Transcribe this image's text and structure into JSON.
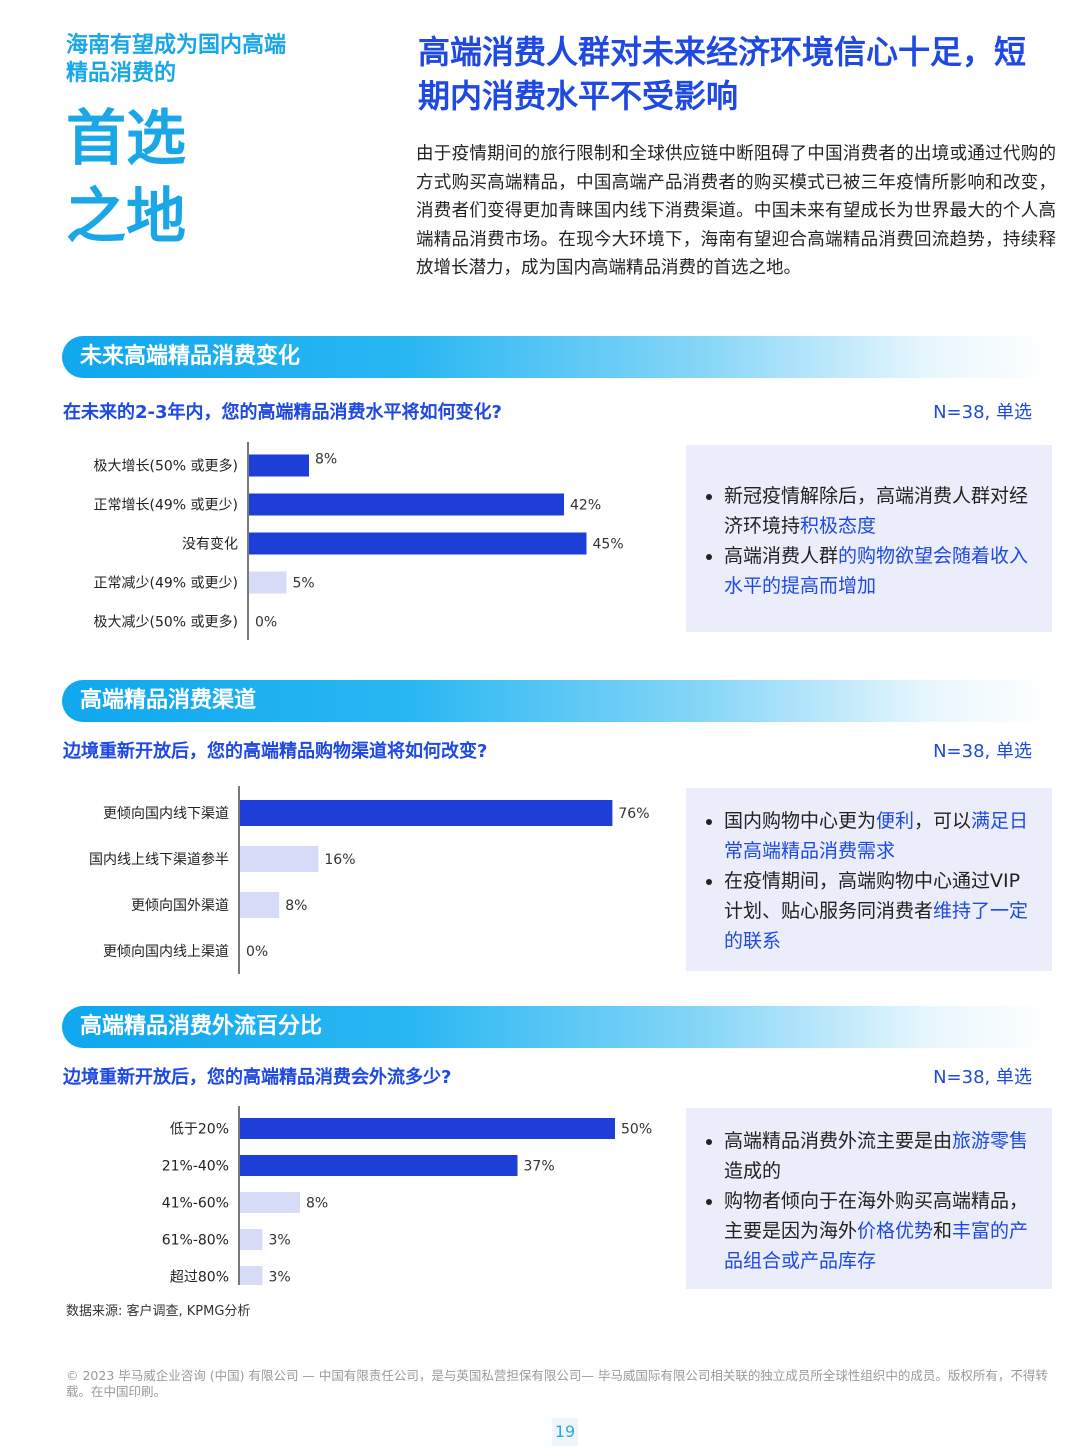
{
  "header": {
    "tagline_small": "海南有望成为国内高端精品消费的",
    "tagline_big_1": "首选",
    "tagline_big_2": "之地",
    "headline": "高端消费人群对未来经济环境信心十足，短期内消费水平不受影响",
    "intro": "由于疫情期间的旅行限制和全球供应链中断阻碍了中国消费者的出境或通过代购的方式购买高端精品，中国高端产品消费者的购买模式已被三年疫情所影响和改变，消费者们变得更加青睐国内线下消费渠道。中国未来有望成长为世界最大的个人高端精品消费市场。在现今大环境下，海南有望迎合高端精品消费回流趋势，持续释放增长潜力，成为国内高端精品消费的首选之地。"
  },
  "sections": [
    {
      "title": "未来高端精品消费变化",
      "question": "在未来的2-3年内，您的高端精品消费水平将如何变化?",
      "n_label": "N=38, 单选",
      "bullets": [
        [
          {
            "t": "新冠疫情解除后，高端消费人群对经济环境持",
            "h": false
          },
          {
            "t": "积极态度",
            "h": true
          }
        ],
        [
          {
            "t": "高端消费人群",
            "h": false
          },
          {
            "t": "的购物欲望会随着收入水平的提高而增加",
            "h": true
          }
        ]
      ]
    },
    {
      "title": "高端精品消费渠道",
      "question": "边境重新开放后，您的高端精品购物渠道将如何改变?",
      "n_label": "N=38, 单选",
      "bullets": [
        [
          {
            "t": "国内购物中心更为",
            "h": false
          },
          {
            "t": "便利",
            "h": true
          },
          {
            "t": "，可以",
            "h": false
          },
          {
            "t": "满足日常高端精品消费需求",
            "h": true
          }
        ],
        [
          {
            "t": "在疫情期间，高端购物中心通过VIP计划、贴心服务同消费者",
            "h": false
          },
          {
            "t": "维持了一定的联系",
            "h": true
          }
        ]
      ]
    },
    {
      "title": "高端精品消费外流百分比",
      "question": "边境重新开放后，您的高端精品消费会外流多少?",
      "n_label": "N=38, 单选",
      "bullets": [
        [
          {
            "t": "高端精品消费外流主要是由",
            "h": false
          },
          {
            "t": "旅游零售",
            "h": true
          },
          {
            "t": "造成的",
            "h": false
          }
        ],
        [
          {
            "t": "购物者倾向于在海外购买高端精品，主要是因为海外",
            "h": false
          },
          {
            "t": "价格优势",
            "h": true
          },
          {
            "t": "和",
            "h": false
          },
          {
            "t": "丰富的产品组合或产品库存",
            "h": true
          }
        ]
      ]
    }
  ],
  "chart_data": [
    {
      "type": "bar",
      "orientation": "horizontal",
      "categories": [
        "极大增长(50% 或更多)",
        "正常增长(49% 或更少)",
        "没有变化",
        "正常减少(49% 或更少)",
        "极大减少(50% 或更多)"
      ],
      "values": [
        8,
        42,
        45,
        5,
        0
      ],
      "value_labels": [
        "8%",
        "42%",
        "45%",
        "5%",
        "0%"
      ],
      "colors": [
        "#1e3ed8",
        "#1e3ed8",
        "#1e3ed8",
        "#d6dcf7",
        "#d6dcf7"
      ],
      "xlim": [
        0,
        100
      ]
    },
    {
      "type": "bar",
      "orientation": "horizontal",
      "categories": [
        "更倾向国内线下渠道",
        "国内线上线下渠道参半",
        "更倾向国外渠道",
        "更倾向国内线上渠道"
      ],
      "values": [
        76,
        16,
        8,
        0
      ],
      "value_labels": [
        "76%",
        "16%",
        "8%",
        "0%"
      ],
      "colors": [
        "#1e3ed8",
        "#d6dcf7",
        "#d6dcf7",
        "#d6dcf7"
      ],
      "xlim": [
        0,
        100
      ]
    },
    {
      "type": "bar",
      "orientation": "horizontal",
      "categories": [
        "低于20%",
        "21%-40%",
        "41%-60%",
        "61%-80%",
        "超过80%"
      ],
      "values": [
        50,
        37,
        8,
        3,
        3
      ],
      "value_labels": [
        "50%",
        "37%",
        "8%",
        "3%",
        "3%"
      ],
      "colors": [
        "#1e3ed8",
        "#1e3ed8",
        "#d6dcf7",
        "#d6dcf7",
        "#d6dcf7"
      ],
      "xlim": [
        0,
        100
      ]
    }
  ],
  "source": "数据来源: 客户调查, KPMG分析",
  "footer": "© 2023 毕马威企业咨询 (中国) 有限公司 — 中国有限责任公司，是与英国私营担保有限公司— 毕马威国际有限公司相关联的独立成员所全球性组织中的成员。版权所有，不得转载。在中国印刷。",
  "page_number": "19",
  "colors": {
    "primary_blue": "#1e49e2",
    "bar_dark": "#1e3ed8",
    "bar_light": "#d6dcf7",
    "accent_cyan": "#1aa7e8",
    "box_bg": "#ebedfb"
  }
}
